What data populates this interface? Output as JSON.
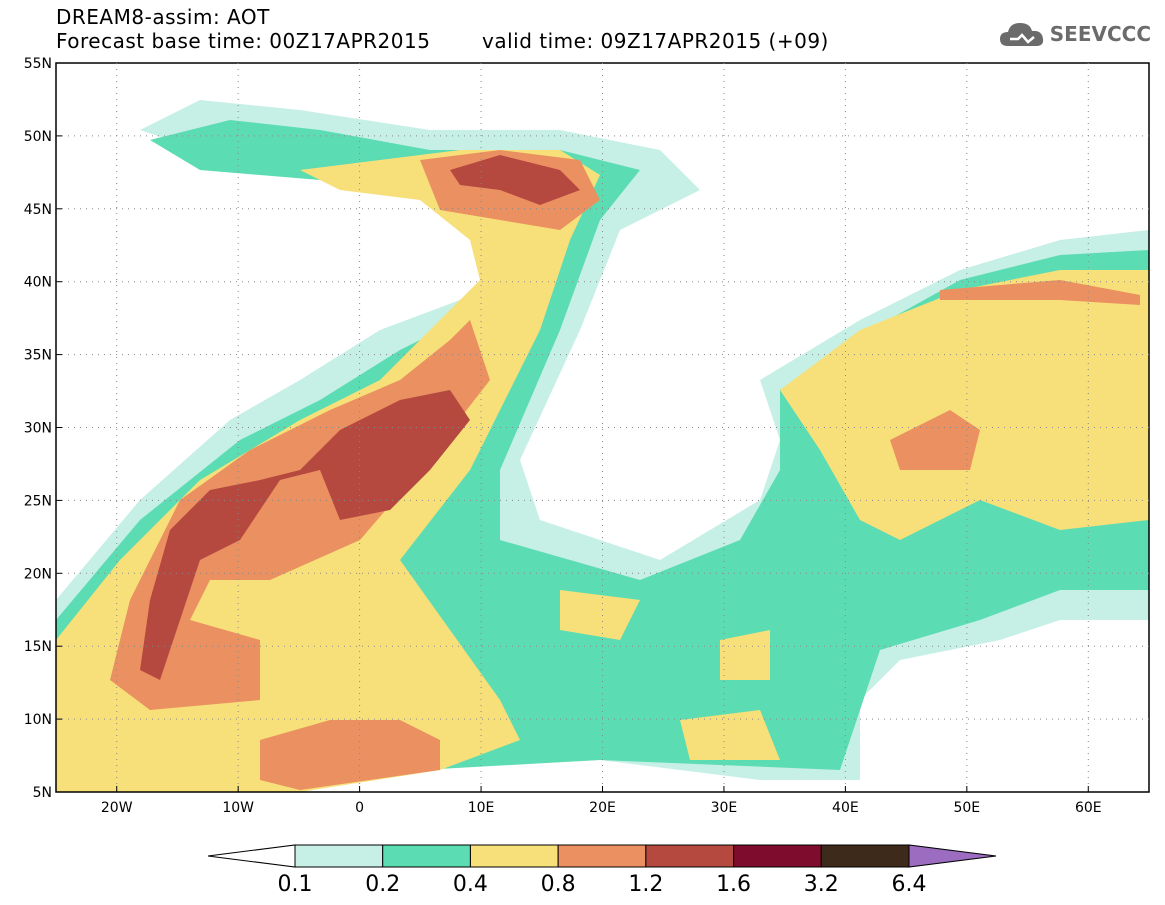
{
  "header": {
    "line1": "DREAM8-assim: AOT",
    "base_time": "Forecast base time: 00Z17APR2015",
    "valid_time": "valid time: 09Z17APR2015 (+09)",
    "logo_text": "SEEVCCC"
  },
  "map": {
    "lon_range": [
      -25,
      65
    ],
    "lat_range": [
      5,
      55
    ],
    "lat_ticks": [
      "5N",
      "10N",
      "15N",
      "20N",
      "25N",
      "30N",
      "35N",
      "40N",
      "45N",
      "50N",
      "55N"
    ],
    "lon_ticks": [
      "20W",
      "10W",
      "0",
      "10E",
      "20E",
      "30E",
      "40E",
      "50E",
      "60E"
    ],
    "grid": "dotted"
  },
  "colorbar": {
    "levels": [
      "0.1",
      "0.2",
      "0.4",
      "0.8",
      "1.2",
      "1.6",
      "3.2",
      "6.4"
    ],
    "colors": [
      "#ffffff",
      "#c6efe6",
      "#5cdcb2",
      "#f7e07a",
      "#eb9060",
      "#b5493f",
      "#7e0c2c",
      "#3e2a1a",
      "#9b6cbf"
    ]
  }
}
